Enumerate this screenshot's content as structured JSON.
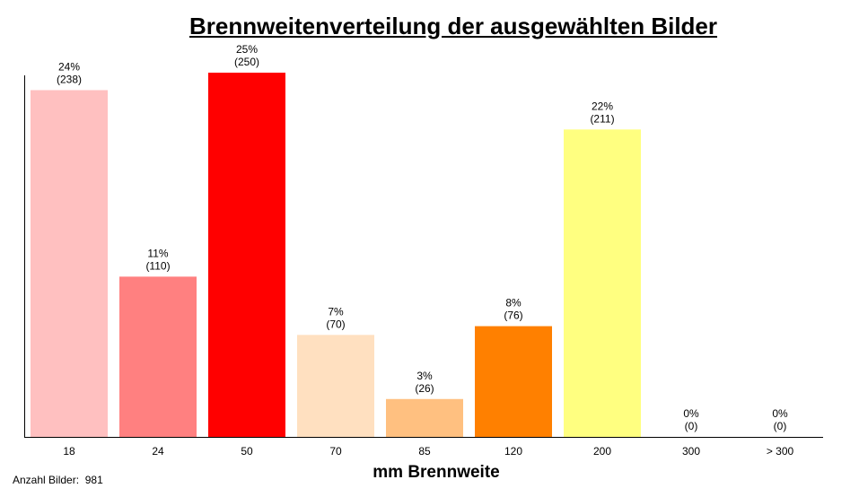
{
  "chart_data": {
    "type": "bar",
    "title": "Brennweitenverteilung der ausgewählten Bilder",
    "xlabel": "mm Brennweite",
    "ylabel": "",
    "categories": [
      "18",
      "24",
      "50",
      "70",
      "85",
      "120",
      "200",
      "300",
      "> 300"
    ],
    "values": [
      238,
      110,
      250,
      70,
      26,
      76,
      211,
      0,
      0
    ],
    "percent_labels": [
      "24%",
      "11%",
      "25%",
      "7%",
      "3%",
      "8%",
      "22%",
      "0%",
      "0%"
    ],
    "count_labels": [
      "(238)",
      "(110)",
      "(250)",
      "(70)",
      "(26)",
      "(76)",
      "(211)",
      "(0)",
      "(0)"
    ],
    "colors": [
      "#ffc0c0",
      "#ff8080",
      "#ff0000",
      "#ffe0c0",
      "#ffc080",
      "#ff8000",
      "#ffff80",
      "#ffff00",
      "#ffff00"
    ],
    "ylim": [
      0,
      250
    ],
    "grid": false,
    "legend": "none"
  },
  "footer": {
    "label": "Anzahl Bilder:",
    "count": "981"
  }
}
